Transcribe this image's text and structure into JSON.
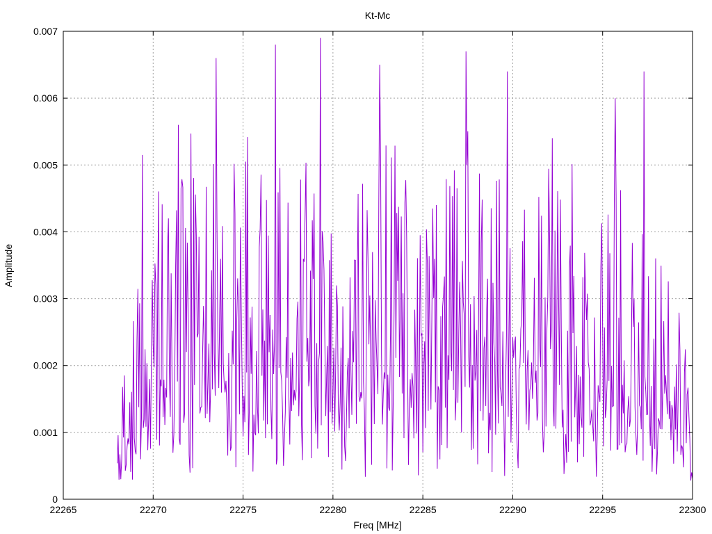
{
  "chart_data": {
    "type": "line",
    "title": "Kt-Mc",
    "xlabel": "Freq [MHz]",
    "ylabel": "Amplitude",
    "xlim": [
      22265,
      22300
    ],
    "ylim": [
      0,
      0.007
    ],
    "x_ticks": [
      "22265",
      "22270",
      "22275",
      "22280",
      "22285",
      "22290",
      "22295",
      "22300"
    ],
    "y_ticks": [
      "0",
      "0.001",
      "0.002",
      "0.003",
      "0.004",
      "0.005",
      "0.006",
      "0.007"
    ],
    "grid": true,
    "series": [
      {
        "color": "#9400d3",
        "x_start": 22268.0,
        "x_end": 22300.0,
        "x_step": 0.05,
        "peaks": [
          {
            "x": 22269.4,
            "y": 0.00515
          },
          {
            "x": 22271.4,
            "y": 0.0056
          },
          {
            "x": 22273.5,
            "y": 0.0066
          },
          {
            "x": 22276.8,
            "y": 0.0068
          },
          {
            "x": 22279.3,
            "y": 0.0069
          },
          {
            "x": 22282.6,
            "y": 0.0065
          },
          {
            "x": 22287.4,
            "y": 0.0067
          },
          {
            "x": 22289.7,
            "y": 0.0064
          },
          {
            "x": 22292.2,
            "y": 0.0054
          },
          {
            "x": 22295.7,
            "y": 0.006
          },
          {
            "x": 22297.3,
            "y": 0.0064
          }
        ],
        "envelope": [
          {
            "x": 22268.0,
            "y": 0.0009
          },
          {
            "x": 22269.0,
            "y": 0.0016
          },
          {
            "x": 22270.0,
            "y": 0.0025
          },
          {
            "x": 22272.0,
            "y": 0.0029
          },
          {
            "x": 22274.0,
            "y": 0.003
          },
          {
            "x": 22277.0,
            "y": 0.0029
          },
          {
            "x": 22280.0,
            "y": 0.0024
          },
          {
            "x": 22283.0,
            "y": 0.0028
          },
          {
            "x": 22285.0,
            "y": 0.0023
          },
          {
            "x": 22287.5,
            "y": 0.0029
          },
          {
            "x": 22290.0,
            "y": 0.0025
          },
          {
            "x": 22293.0,
            "y": 0.0029
          },
          {
            "x": 22296.0,
            "y": 0.0026
          },
          {
            "x": 22298.5,
            "y": 0.0018
          },
          {
            "x": 22300.0,
            "y": 0.0013
          }
        ]
      }
    ]
  }
}
